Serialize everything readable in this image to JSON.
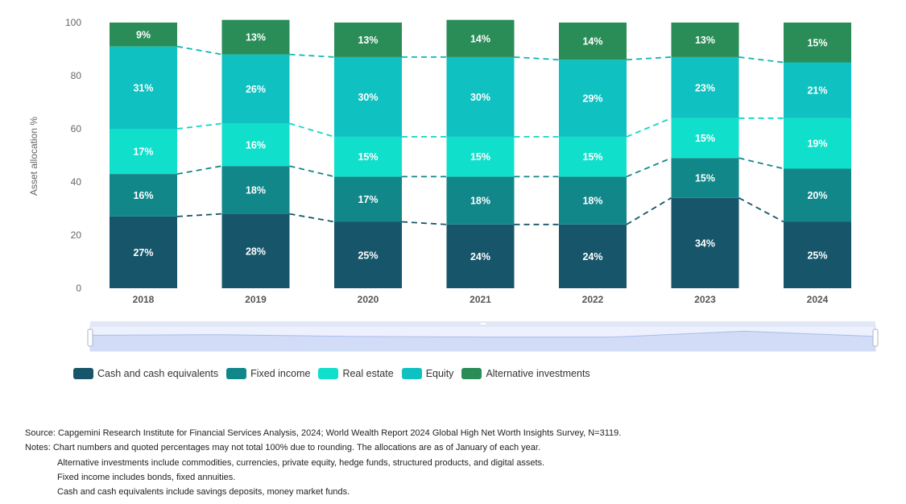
{
  "chart_data": {
    "type": "bar",
    "stacked": true,
    "categories": [
      "2018",
      "2019",
      "2020",
      "2021",
      "2022",
      "2023",
      "2024"
    ],
    "series": [
      {
        "name": "Cash and cash equivalents",
        "color": "#17566a",
        "values": [
          27,
          28,
          25,
          24,
          24,
          34,
          25
        ],
        "labels": [
          "27%",
          "28%",
          "25%",
          "24%",
          "24%",
          "34%",
          "25%"
        ]
      },
      {
        "name": "Fixed income",
        "color": "#11878a",
        "values": [
          16,
          18,
          17,
          18,
          18,
          15,
          20
        ],
        "labels": [
          "16%",
          "18%",
          "17%",
          "18%",
          "18%",
          "15%",
          "20%"
        ]
      },
      {
        "name": "Real estate",
        "color": "#10e0cb",
        "values": [
          17,
          16,
          15,
          15,
          15,
          15,
          19
        ],
        "labels": [
          "17%",
          "16%",
          "15%",
          "15%",
          "15%",
          "15%",
          "19%"
        ]
      },
      {
        "name": "Equity",
        "color": "#0fc1c1",
        "values": [
          31,
          26,
          30,
          30,
          29,
          23,
          21
        ],
        "labels": [
          "31%",
          "26%",
          "30%",
          "30%",
          "29%",
          "23%",
          "21%"
        ]
      },
      {
        "name": "Alternative investments",
        "color": "#2a8d57",
        "values": [
          9,
          13,
          13,
          14,
          14,
          13,
          15
        ],
        "labels": [
          "9%",
          "13%",
          "13%",
          "14%",
          "14%",
          "13%",
          "15%"
        ]
      }
    ],
    "yticks": [
      "0",
      "20",
      "40",
      "60",
      "80",
      "100"
    ],
    "ylim": [
      0,
      100
    ],
    "ylabel": "Asset allocation %",
    "xlabel": "",
    "legend_position": "bottom-left"
  },
  "source": "Source: Capgemini Research Institute for Financial Services Analysis, 2024; World Wealth Report 2024 Global High Net Worth Insights Survey, N=3119.",
  "notes": [
    "Notes: Chart numbers and quoted percentages may not total 100% due to rounding. The allocations are as of January of each year.",
    "Alternative investments include commodities, currencies, private equity, hedge funds, structured products, and digital assets.",
    "Fixed income includes bonds, fixed annuities.",
    "Cash and cash equivalents include savings deposits, money market funds."
  ]
}
